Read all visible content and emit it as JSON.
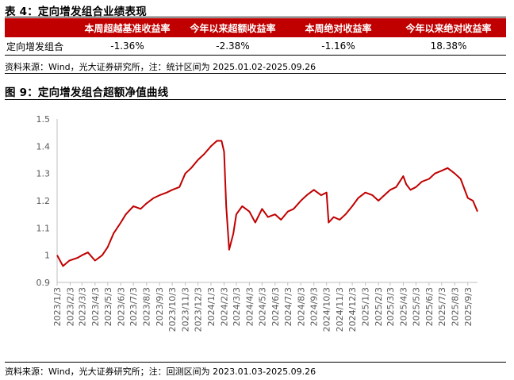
{
  "table_title": "表 4：定向增发组合业绩表现",
  "table": {
    "headers": [
      "",
      "本周超越基准收益率",
      "今年以来超额收益率",
      "本周绝对收益率",
      "今年以来绝对收益率"
    ],
    "rows": [
      [
        "定向增发组合",
        "-1.36%",
        "-2.38%",
        "-1.16%",
        "18.38%"
      ]
    ]
  },
  "table_source": "资料来源：Wind，光大证券研究所，注：统计区间为 2025.01.02-2025.09.26",
  "chart_title": "图 9：定向增发组合超额净值曲线",
  "chart_source": "资料来源：Wind，光大证券研究所；注：回测区间为 2023.01.03-2025.09.26",
  "colors": {
    "accent": "#c00000",
    "line": "#c00000",
    "axis": "#bfbfbf",
    "tick_text": "#595959"
  },
  "chart_data": {
    "type": "line",
    "title": "",
    "xlabel": "",
    "ylabel": "",
    "ylim": [
      0.9,
      1.5
    ],
    "yticks": [
      0.9,
      1.0,
      1.1,
      1.2,
      1.3,
      1.4,
      1.5
    ],
    "ytick_labels": [
      "0.9",
      "1",
      "1.1",
      "1.2",
      "1.3",
      "1.4",
      "1.5"
    ],
    "grid": false,
    "legend": "none",
    "xtick_labels": [
      "2023/1/3",
      "2023/2/3",
      "2023/3/3",
      "2023/4/3",
      "2023/5/3",
      "2023/6/3",
      "2023/7/3",
      "2023/8/3",
      "2023/9/3",
      "2023/10/3",
      "2023/11/3",
      "2023/12/3",
      "2024/1/3",
      "2024/2/3",
      "2024/3/3",
      "2024/4/3",
      "2024/5/3",
      "2024/6/3",
      "2024/7/3",
      "2024/8/3",
      "2024/9/3",
      "2024/10/3",
      "2024/11/3",
      "2024/12/3",
      "2025/1/3",
      "2025/2/3",
      "2025/3/3",
      "2025/4/3",
      "2025/5/3",
      "2025/6/3",
      "2025/7/3",
      "2025/8/3",
      "2025/9/3"
    ],
    "x_range": [
      "2023/1/3",
      "2025/9/26"
    ],
    "series": [
      {
        "name": "",
        "x": [
          "2023/1/3",
          "2023/1/17",
          "2023/2/1",
          "2023/2/20",
          "2023/3/3",
          "2023/3/17",
          "2023/4/3",
          "2023/4/20",
          "2023/5/3",
          "2023/5/17",
          "2023/6/3",
          "2023/6/15",
          "2023/7/3",
          "2023/7/20",
          "2023/8/3",
          "2023/8/20",
          "2023/9/3",
          "2023/9/20",
          "2023/10/3",
          "2023/10/20",
          "2023/11/3",
          "2023/11/17",
          "2023/12/3",
          "2023/12/17",
          "2024/1/3",
          "2024/1/17",
          "2024/1/28",
          "2024/2/3",
          "2024/2/8",
          "2024/2/15",
          "2024/2/25",
          "2024/3/3",
          "2024/3/17",
          "2024/4/3",
          "2024/4/17",
          "2024/5/3",
          "2024/5/17",
          "2024/6/3",
          "2024/6/17",
          "2024/7/3",
          "2024/7/17",
          "2024/8/3",
          "2024/8/17",
          "2024/9/3",
          "2024/9/20",
          "2024/10/3",
          "2024/10/8",
          "2024/10/20",
          "2024/11/3",
          "2024/11/17",
          "2024/12/3",
          "2024/12/17",
          "2025/1/3",
          "2025/1/20",
          "2025/2/3",
          "2025/2/17",
          "2025/3/3",
          "2025/3/17",
          "2025/4/3",
          "2025/4/10",
          "2025/4/20",
          "2025/5/3",
          "2025/5/17",
          "2025/6/3",
          "2025/6/17",
          "2025/7/3",
          "2025/7/17",
          "2025/8/3",
          "2025/8/17",
          "2025/9/3",
          "2025/9/15",
          "2025/9/26"
        ],
        "y": [
          1.0,
          0.96,
          0.98,
          0.99,
          1.0,
          1.01,
          0.98,
          1.0,
          1.03,
          1.08,
          1.12,
          1.15,
          1.18,
          1.17,
          1.19,
          1.21,
          1.22,
          1.23,
          1.24,
          1.25,
          1.3,
          1.32,
          1.35,
          1.37,
          1.4,
          1.42,
          1.42,
          1.38,
          1.18,
          1.02,
          1.08,
          1.15,
          1.18,
          1.16,
          1.12,
          1.17,
          1.14,
          1.15,
          1.13,
          1.16,
          1.17,
          1.2,
          1.22,
          1.24,
          1.22,
          1.23,
          1.12,
          1.14,
          1.13,
          1.15,
          1.18,
          1.21,
          1.23,
          1.22,
          1.2,
          1.22,
          1.24,
          1.25,
          1.29,
          1.26,
          1.24,
          1.25,
          1.27,
          1.28,
          1.3,
          1.31,
          1.32,
          1.3,
          1.28,
          1.21,
          1.2,
          1.16
        ]
      }
    ]
  }
}
